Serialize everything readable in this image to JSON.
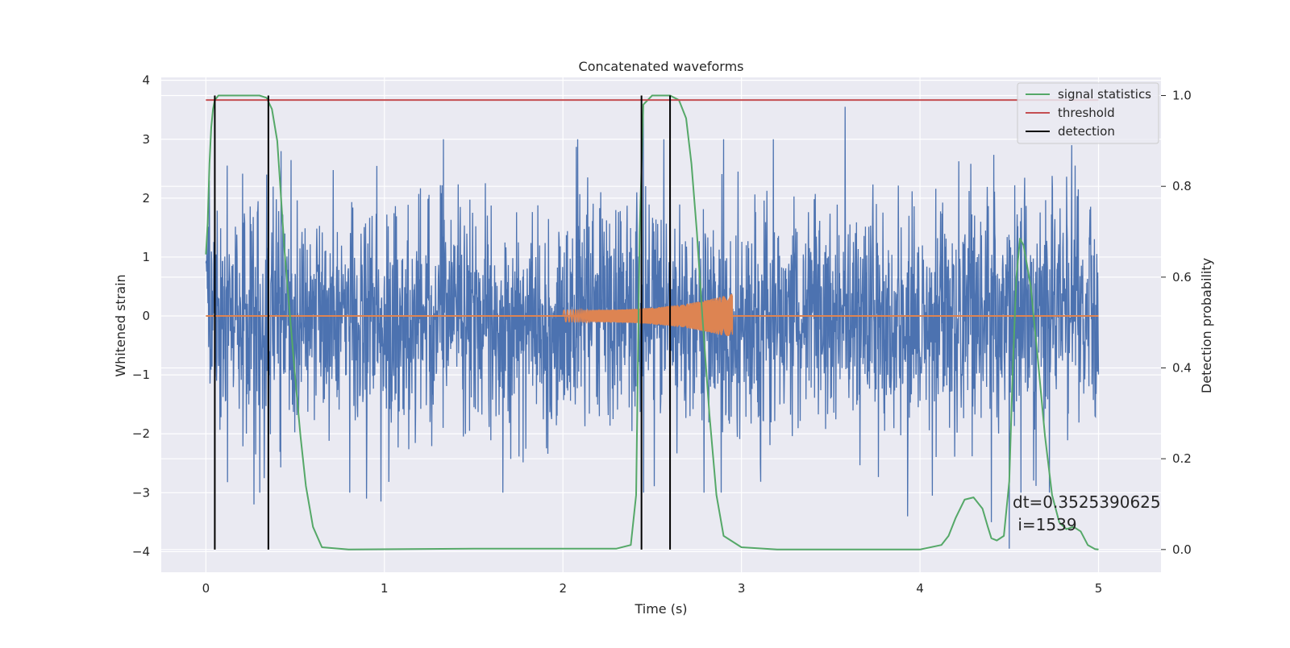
{
  "chart_data": {
    "type": "line",
    "title": "Concatenated waveforms",
    "xlabel": "Time (s)",
    "ylabel": "Whitened strain",
    "y2label": "Detection probability",
    "xlim": [
      -0.25,
      5.35
    ],
    "ylim": [
      -4.35,
      4.05
    ],
    "y2lim": [
      -0.05,
      1.04
    ],
    "xticks": [
      0,
      1,
      2,
      3,
      4,
      5
    ],
    "yticks": [
      -4,
      -3,
      -2,
      -1,
      0,
      1,
      2,
      3,
      4
    ],
    "y2ticks": [
      0.0,
      0.2,
      0.4,
      0.6,
      0.8,
      1.0
    ],
    "xtick_labels": [
      "0",
      "1",
      "2",
      "3",
      "4",
      "5"
    ],
    "ytick_labels": [
      "−4",
      "−3",
      "−2",
      "−1",
      "0",
      "1",
      "2",
      "3",
      "4"
    ],
    "y2tick_labels": [
      "0.0",
      "0.2",
      "0.4",
      "0.6",
      "0.8",
      "1.0"
    ],
    "grid": true,
    "legend_position": "top-right",
    "noise": {
      "color": "#4c72b0",
      "x_range": [
        0,
        5
      ],
      "typical_amplitude": 1.5,
      "extremes": [
        {
          "x": 0.02,
          "y": 2.3
        },
        {
          "x": 0.27,
          "y": -3.2
        },
        {
          "x": 0.34,
          "y": 2.4
        },
        {
          "x": 1.33,
          "y": 3.0
        },
        {
          "x": 0.9,
          "y": -3.1
        },
        {
          "x": 0.98,
          "y": -3.15
        },
        {
          "x": 2.45,
          "y": 3.5
        },
        {
          "x": 2.6,
          "y": 3.1
        },
        {
          "x": 3.58,
          "y": 3.55
        },
        {
          "x": 3.93,
          "y": -3.4
        },
        {
          "x": 4.07,
          "y": -3.05
        },
        {
          "x": 4.4,
          "y": -3.5
        },
        {
          "x": 4.5,
          "y": -3.95
        },
        {
          "x": 4.85,
          "y": 2.9
        }
      ]
    },
    "chirp": {
      "color": "#dd8452",
      "x_start": 2.0,
      "x_end": 2.95,
      "amplitude_start": 0.1,
      "amplitude_end": 0.38
    },
    "series": [
      {
        "name": "signal statistics",
        "color": "#55a868",
        "axis": "right",
        "x": [
          0,
          0.01,
          0.02,
          0.03,
          0.04,
          0.05,
          0.07,
          0.1,
          0.2,
          0.3,
          0.34,
          0.37,
          0.4,
          0.42,
          0.44,
          0.47,
          0.5,
          0.53,
          0.56,
          0.6,
          0.65,
          0.8,
          1.5,
          2.3,
          2.38,
          2.41,
          2.43,
          2.45,
          2.5,
          2.6,
          2.65,
          2.69,
          2.72,
          2.75,
          2.78,
          2.82,
          2.86,
          2.9,
          3.0,
          3.2,
          4.0,
          4.12,
          4.16,
          4.2,
          4.25,
          4.3,
          4.35,
          4.38,
          4.4,
          4.43,
          4.47,
          4.5,
          4.52,
          4.54,
          4.56,
          4.58,
          4.62,
          4.66,
          4.7,
          4.74,
          4.78,
          4.82,
          4.86,
          4.9,
          4.94,
          4.98,
          5.0
        ],
        "y": [
          0.65,
          0.72,
          0.85,
          0.93,
          0.97,
          0.99,
          1.0,
          1.0,
          1.0,
          1.0,
          0.995,
          0.97,
          0.9,
          0.78,
          0.66,
          0.52,
          0.38,
          0.25,
          0.14,
          0.05,
          0.005,
          0.0,
          0.002,
          0.002,
          0.01,
          0.12,
          0.7,
          0.98,
          1.0,
          1.0,
          0.99,
          0.95,
          0.85,
          0.7,
          0.52,
          0.3,
          0.12,
          0.03,
          0.005,
          0.0,
          0.0,
          0.01,
          0.03,
          0.07,
          0.11,
          0.115,
          0.09,
          0.05,
          0.025,
          0.02,
          0.03,
          0.15,
          0.4,
          0.6,
          0.685,
          0.67,
          0.58,
          0.42,
          0.25,
          0.12,
          0.06,
          0.045,
          0.05,
          0.04,
          0.01,
          0.001,
          0.0
        ]
      },
      {
        "name": "threshold",
        "color": "#c44e52",
        "axis": "right",
        "x": [
          0,
          5
        ],
        "y": [
          0.99,
          0.99
        ]
      },
      {
        "name": "detection",
        "color": "#000000",
        "axis": "right",
        "x_positions": [
          0.05,
          0.35,
          2.44,
          2.6
        ],
        "y_range": [
          0,
          1.0
        ]
      }
    ],
    "annotation": {
      "line1": "dt=0.3525390625",
      "line2": " i=1539"
    }
  }
}
